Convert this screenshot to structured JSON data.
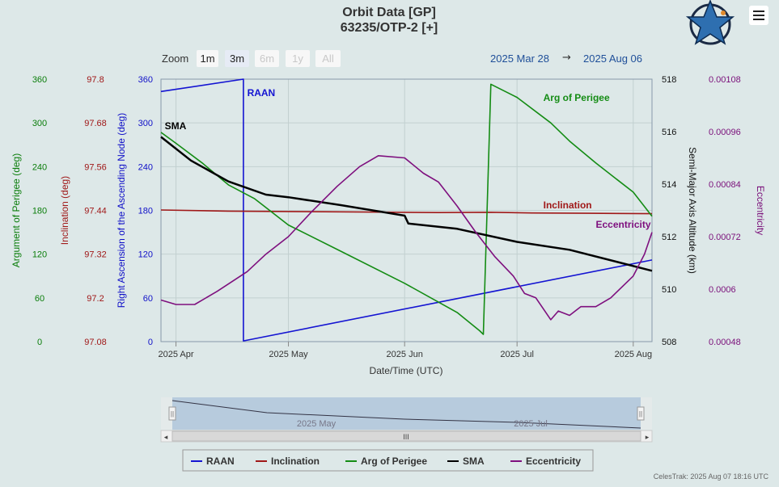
{
  "title": "Orbit Data [GP]",
  "subtitle": "63235/OTP-2 [+]",
  "zoom": {
    "label": "Zoom",
    "buttons": [
      {
        "label": "1m",
        "state": "normal"
      },
      {
        "label": "3m",
        "state": "selected"
      },
      {
        "label": "6m",
        "state": "disabled"
      },
      {
        "label": "1y",
        "state": "disabled"
      },
      {
        "label": "All",
        "state": "disabled"
      }
    ]
  },
  "range": {
    "from": "2025 Mar 28",
    "arrow": "→",
    "to": "2025 Aug 06"
  },
  "credit": "CelesTrak: 2025 Aug 07 18:16 UTC",
  "menu_icon": "hamburger-icon",
  "logo_icon": "celestrak-star-icon",
  "navigator": {
    "labels": [
      "2025 May",
      "2025 Jul"
    ],
    "grip": "III",
    "left_arrow": "◂",
    "right_arrow": "▸",
    "handle_glyph": "||"
  },
  "chart_data": {
    "type": "line",
    "x_range": [
      "2025-03-28",
      "2025-08-06"
    ],
    "x_ticks": [
      {
        "date": "2025-04-01",
        "label": "2025 Apr"
      },
      {
        "date": "2025-05-01",
        "label": "2025 May"
      },
      {
        "date": "2025-06-01",
        "label": "2025 Jun"
      },
      {
        "date": "2025-07-01",
        "label": "2025 Jul"
      },
      {
        "date": "2025-08-01",
        "label": "2025 Aug"
      }
    ],
    "xlabel": "Date/Time (UTC)",
    "grid": true,
    "legend_position": "bottom-center",
    "axes": {
      "perigee": {
        "title": "Argument of Perigee (deg)",
        "min": 0,
        "max": 360,
        "ticks": [
          "0",
          "60",
          "120",
          "180",
          "240",
          "300",
          "360"
        ],
        "color": "#0a7d0a"
      },
      "inclination": {
        "title": "Inclination (deg)",
        "min": 97.08,
        "max": 97.8,
        "ticks": [
          "97.08",
          "97.2",
          "97.32",
          "97.44",
          "97.56",
          "97.68",
          "97.8"
        ],
        "color": "#a01818"
      },
      "raan": {
        "title": "Right Ascension of the Ascending Node (deg)",
        "min": 0,
        "max": 360,
        "ticks": [
          "0",
          "60",
          "120",
          "180",
          "240",
          "300",
          "360"
        ],
        "color": "#1010c8"
      },
      "sma": {
        "title": "Semi-Major Axis Altitude (km)",
        "min": 508,
        "max": 518,
        "ticks": [
          "508",
          "510",
          "512",
          "514",
          "516",
          "518"
        ],
        "color": "#111111"
      },
      "ecc": {
        "title": "Eccentricity",
        "min": 0.00048,
        "max": 0.00108,
        "ticks": [
          "0.00048",
          "0.0006",
          "0.00072",
          "0.00084",
          "0.00096",
          "0.00108"
        ],
        "color": "#7a0f7a"
      }
    },
    "series": [
      {
        "name": "RAAN",
        "axis": "raan",
        "color": "#1414d2",
        "points": [
          [
            "2025-03-28",
            343
          ],
          [
            "2025-04-19",
            360
          ],
          [
            "2025-04-19",
            1
          ],
          [
            "2025-08-06",
            112
          ]
        ],
        "label": {
          "text": "RAAN",
          "at": [
            "2025-04-20",
            337
          ]
        }
      },
      {
        "name": "Inclination",
        "axis": "inclination",
        "color": "#a01818",
        "points": [
          [
            "2025-03-28",
            97.441
          ],
          [
            "2025-04-15",
            97.438
          ],
          [
            "2025-05-15",
            97.436
          ],
          [
            "2025-06-10",
            97.434
          ],
          [
            "2025-06-24",
            97.435
          ],
          [
            "2025-07-05",
            97.433
          ],
          [
            "2025-07-20",
            97.432
          ],
          [
            "2025-08-06",
            97.431
          ]
        ],
        "label": {
          "text": "Inclination",
          "at": [
            "2025-07-08",
            97.446
          ]
        }
      },
      {
        "name": "Arg of Perigee",
        "axis": "perigee",
        "color": "#148c14",
        "points": [
          [
            "2025-03-28",
            287
          ],
          [
            "2025-04-01",
            272
          ],
          [
            "2025-04-08",
            245
          ],
          [
            "2025-04-15",
            215
          ],
          [
            "2025-04-22",
            196
          ],
          [
            "2025-05-01",
            160
          ],
          [
            "2025-05-15",
            124
          ],
          [
            "2025-06-01",
            80
          ],
          [
            "2025-06-15",
            40
          ],
          [
            "2025-06-21",
            15
          ],
          [
            "2025-06-22",
            10
          ],
          [
            "2025-06-24",
            353
          ],
          [
            "2025-07-01",
            335
          ],
          [
            "2025-07-10",
            300
          ],
          [
            "2025-07-15",
            275
          ],
          [
            "2025-07-22",
            245
          ],
          [
            "2025-08-01",
            205
          ],
          [
            "2025-08-06",
            172
          ]
        ],
        "label": {
          "text": "Arg of Perigee",
          "at": [
            "2025-07-08",
            330
          ]
        }
      },
      {
        "name": "SMA",
        "axis": "sma",
        "color": "#000000",
        "points": [
          [
            "2025-03-28",
            515.8
          ],
          [
            "2025-04-05",
            514.9
          ],
          [
            "2025-04-15",
            514.1
          ],
          [
            "2025-04-25",
            513.6
          ],
          [
            "2025-05-01",
            513.5
          ],
          [
            "2025-05-15",
            513.2
          ],
          [
            "2025-06-01",
            512.8
          ],
          [
            "2025-06-02",
            512.5
          ],
          [
            "2025-06-15",
            512.3
          ],
          [
            "2025-07-01",
            511.8
          ],
          [
            "2025-07-15",
            511.5
          ],
          [
            "2025-08-06",
            510.7
          ]
        ],
        "label": {
          "text": "SMA",
          "at": [
            "2025-03-29",
            516.1
          ]
        }
      },
      {
        "name": "Eccentricity",
        "axis": "ecc",
        "color": "#7e0f7e",
        "points": [
          [
            "2025-03-28",
            0.000575
          ],
          [
            "2025-04-01",
            0.000565
          ],
          [
            "2025-04-06",
            0.000565
          ],
          [
            "2025-04-12",
            0.000595
          ],
          [
            "2025-04-20",
            0.00064
          ],
          [
            "2025-04-25",
            0.00068
          ],
          [
            "2025-05-01",
            0.00072
          ],
          [
            "2025-05-07",
            0.000775
          ],
          [
            "2025-05-14",
            0.000835
          ],
          [
            "2025-05-20",
            0.00088
          ],
          [
            "2025-05-25",
            0.000905
          ],
          [
            "2025-06-01",
            0.0009
          ],
          [
            "2025-06-06",
            0.000865
          ],
          [
            "2025-06-10",
            0.000845
          ],
          [
            "2025-06-15",
            0.00079
          ],
          [
            "2025-06-20",
            0.00073
          ],
          [
            "2025-06-25",
            0.000675
          ],
          [
            "2025-06-30",
            0.00063
          ],
          [
            "2025-07-03",
            0.00059
          ],
          [
            "2025-07-06",
            0.00058
          ],
          [
            "2025-07-10",
            0.00053
          ],
          [
            "2025-07-12",
            0.00055
          ],
          [
            "2025-07-15",
            0.00054
          ],
          [
            "2025-07-18",
            0.00056
          ],
          [
            "2025-07-22",
            0.00056
          ],
          [
            "2025-07-26",
            0.00058
          ],
          [
            "2025-08-01",
            0.00063
          ],
          [
            "2025-08-04",
            0.00068
          ],
          [
            "2025-08-06",
            0.00073
          ]
        ],
        "label": {
          "text": "Eccentricity",
          "at": [
            "2025-07-22",
            0.00074
          ]
        }
      }
    ]
  }
}
